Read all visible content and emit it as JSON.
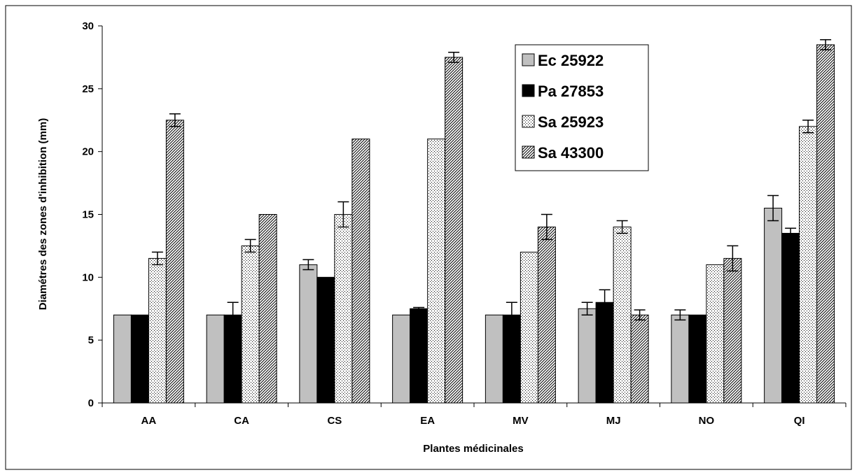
{
  "chart_data": {
    "type": "bar",
    "title": "",
    "xlabel": "Plantes médicinales",
    "ylabel": "Diamétres des zones d'inhibition (mm)",
    "ylim": [
      0,
      30
    ],
    "yticks": [
      0,
      5,
      10,
      15,
      20,
      25,
      30
    ],
    "grid": false,
    "legend_position": "top-right",
    "categories": [
      "AA",
      "CA",
      "CS",
      "EA",
      "MV",
      "MJ",
      "NO",
      "QI"
    ],
    "series": [
      {
        "name": "Ec 25922",
        "fill": "#c0c0c0",
        "values": [
          7,
          7,
          11,
          7,
          7,
          7.5,
          7,
          15.5
        ],
        "errors": [
          0,
          0,
          0.4,
          0,
          0,
          0.5,
          0.4,
          1
        ]
      },
      {
        "name": "Pa 27853",
        "fill": "#000000",
        "values": [
          7,
          7,
          10,
          7.5,
          7,
          8,
          7,
          13.5
        ],
        "errors": [
          0,
          1,
          0,
          0.1,
          1,
          1,
          0,
          0.4
        ]
      },
      {
        "name": "Sa 25923",
        "fill": "dotted",
        "values": [
          11.5,
          12.5,
          15,
          21,
          12,
          14,
          11,
          22
        ],
        "errors": [
          0.5,
          0.5,
          1,
          0,
          0,
          0.5,
          0,
          0.5
        ]
      },
      {
        "name": "Sa 43300",
        "fill": "hatched",
        "values": [
          22.5,
          15,
          21,
          27.5,
          14,
          7,
          11.5,
          28.5
        ],
        "errors": [
          0.5,
          0,
          0,
          0.4,
          1,
          0.4,
          1,
          0.4
        ]
      }
    ]
  }
}
